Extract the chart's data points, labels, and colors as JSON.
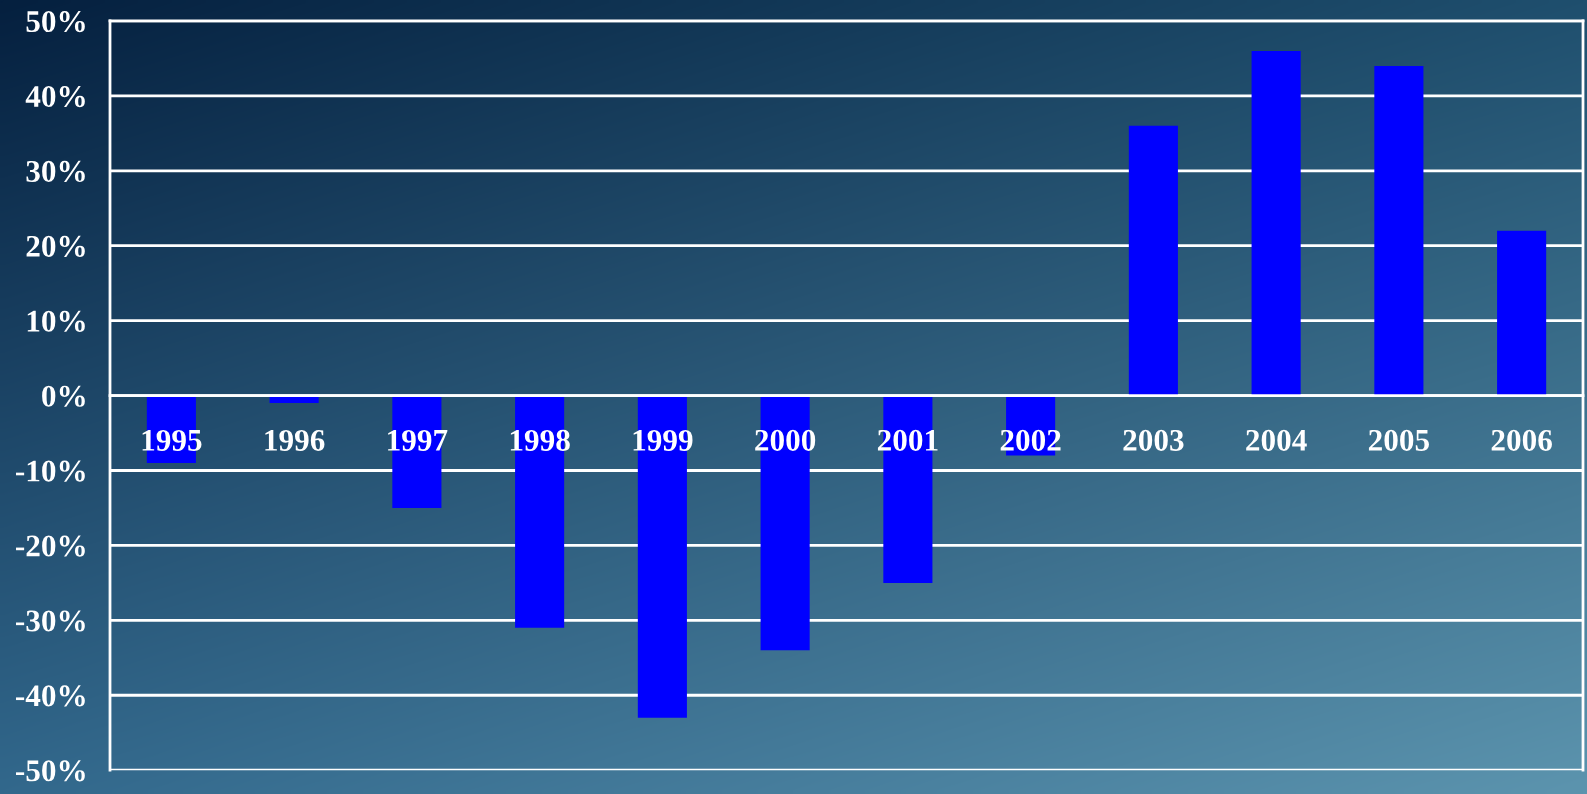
{
  "chart_data": {
    "type": "bar",
    "categories": [
      "1995",
      "1996",
      "1997",
      "1998",
      "1999",
      "2000",
      "2001",
      "2002",
      "2003",
      "2004",
      "2005",
      "2006"
    ],
    "values": [
      -9,
      -1,
      -15,
      -31,
      -43,
      -34,
      -25,
      -8,
      36,
      46,
      44,
      22
    ],
    "color": "#0000ff",
    "ylim": [
      -50,
      50
    ],
    "yticks": [
      {
        "value": -50,
        "label": "-50%"
      },
      {
        "value": -40,
        "label": "-40%"
      },
      {
        "value": -30,
        "label": "-30%"
      },
      {
        "value": -20,
        "label": "-20%"
      },
      {
        "value": -10,
        "label": "-10%"
      },
      {
        "value": 0,
        "label": "0%"
      },
      {
        "value": 10,
        "label": "10%"
      },
      {
        "value": 20,
        "label": "20%"
      },
      {
        "value": 30,
        "label": "30%"
      },
      {
        "value": 40,
        "label": "40%"
      },
      {
        "value": 50,
        "label": "50%"
      }
    ],
    "grid": "y"
  }
}
